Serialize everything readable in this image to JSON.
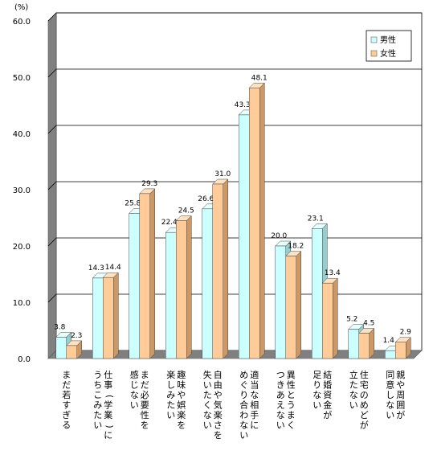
{
  "chart_data": {
    "type": "bar",
    "ylabel": "(%)",
    "ylim": [
      0,
      60
    ],
    "yticks": [
      "0.0",
      "10.0",
      "20.0",
      "30.0",
      "40.0",
      "50.0",
      "60.0"
    ],
    "categories": [
      [
        "まだ若すぎる"
      ],
      [
        "仕事(学業)に",
        "うちこみたい"
      ],
      [
        "まだ必要性を",
        "感じない"
      ],
      [
        "趣味や娯楽を",
        "楽しみたい"
      ],
      [
        "自由や気楽さを",
        "失いたくない"
      ],
      [
        "適当な相手に",
        "めぐり合わない"
      ],
      [
        "異性とうまく",
        "つきあえない"
      ],
      [
        "結婚資金が",
        "足りない"
      ],
      [
        "住宅のめどが",
        "立たない"
      ],
      [
        "親や周囲が",
        "同意しない"
      ]
    ],
    "series": [
      {
        "name": "男性",
        "color": "#ccffff",
        "values": [
          3.8,
          14.3,
          25.8,
          22.4,
          26.6,
          43.3,
          20.0,
          23.1,
          5.2,
          1.4
        ],
        "labels": [
          "3.8",
          "14.3",
          "25.8",
          "22.4",
          "26.6",
          "43.3",
          "20.0",
          "23.1",
          "5.2",
          "1.4"
        ]
      },
      {
        "name": "女性",
        "color": "#ffcc99",
        "values": [
          2.3,
          14.4,
          29.3,
          24.5,
          31.0,
          48.1,
          18.2,
          13.4,
          4.5,
          2.9
        ],
        "labels": [
          "2.3",
          "14.4",
          "29.3",
          "24.5",
          "31.0",
          "48.1",
          "18.2",
          "13.4",
          "4.5",
          "2.9"
        ]
      }
    ],
    "grid": true,
    "legend": "top-right"
  }
}
